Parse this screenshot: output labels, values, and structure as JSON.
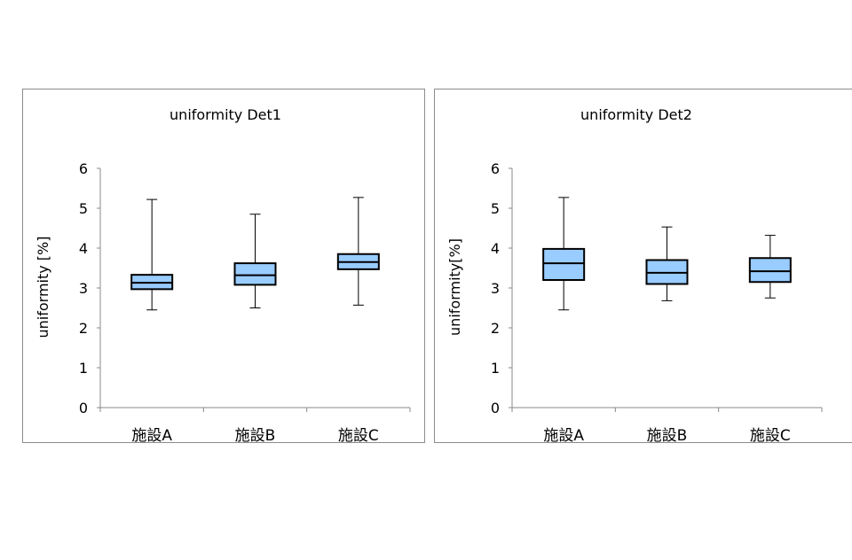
{
  "chart_data": [
    {
      "type": "box",
      "title": "uniformity Det1",
      "ylabel": "uniformity [%]",
      "xlabel": "",
      "ylim": [
        0,
        6
      ],
      "yticks": [
        "0",
        "1",
        "2",
        "3",
        "4",
        "5",
        "6"
      ],
      "grid": false,
      "box_color": "#99ccff",
      "categories": [
        "施設A",
        "施設B",
        "施設C"
      ],
      "boxes": [
        {
          "min": 2.45,
          "q1": 2.97,
          "median": 3.13,
          "q3": 3.33,
          "max": 5.22
        },
        {
          "min": 2.5,
          "q1": 3.08,
          "median": 3.32,
          "q3": 3.62,
          "max": 4.85
        },
        {
          "min": 2.57,
          "q1": 3.47,
          "median": 3.65,
          "q3": 3.85,
          "max": 5.27
        }
      ]
    },
    {
      "type": "box",
      "title": "uniformity Det2",
      "ylabel": "uniformity[%]",
      "xlabel": "",
      "ylim": [
        0,
        6
      ],
      "yticks": [
        "0",
        "1",
        "2",
        "3",
        "4",
        "5",
        "6"
      ],
      "grid": false,
      "box_color": "#99ccff",
      "categories": [
        "施設A",
        "施設B",
        "施設C"
      ],
      "boxes": [
        {
          "min": 2.45,
          "q1": 3.2,
          "median": 3.62,
          "q3": 3.98,
          "max": 5.27
        },
        {
          "min": 2.68,
          "q1": 3.1,
          "median": 3.38,
          "q3": 3.7,
          "max": 4.53
        },
        {
          "min": 2.75,
          "q1": 3.15,
          "median": 3.42,
          "q3": 3.75,
          "max": 4.32
        }
      ]
    }
  ]
}
